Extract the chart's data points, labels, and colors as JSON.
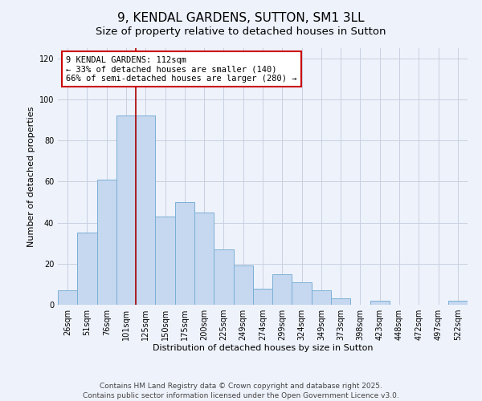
{
  "title": "9, KENDAL GARDENS, SUTTON, SM1 3LL",
  "subtitle": "Size of property relative to detached houses in Sutton",
  "xlabel": "Distribution of detached houses by size in Sutton",
  "ylabel": "Number of detached properties",
  "bar_labels": [
    "26sqm",
    "51sqm",
    "76sqm",
    "101sqm",
    "125sqm",
    "150sqm",
    "175sqm",
    "200sqm",
    "225sqm",
    "249sqm",
    "274sqm",
    "299sqm",
    "324sqm",
    "349sqm",
    "373sqm",
    "398sqm",
    "423sqm",
    "448sqm",
    "472sqm",
    "497sqm",
    "522sqm"
  ],
  "bar_values": [
    7,
    35,
    61,
    92,
    92,
    43,
    50,
    45,
    27,
    19,
    8,
    15,
    11,
    7,
    3,
    0,
    2,
    0,
    0,
    0,
    2
  ],
  "bar_color": "#c5d8f0",
  "bar_edge_color": "#7bafd4",
  "vline_x": 3.5,
  "vline_color": "#aa0000",
  "annotation_line1": "9 KENDAL GARDENS: 112sqm",
  "annotation_line2": "← 33% of detached houses are smaller (140)",
  "annotation_line3": "66% of semi-detached houses are larger (280) →",
  "annotation_box_color": "#ffffff",
  "annotation_box_edge": "#cc0000",
  "ylim": [
    0,
    125
  ],
  "yticks": [
    0,
    20,
    40,
    60,
    80,
    100,
    120
  ],
  "bg_color": "#eef2fb",
  "grid_color": "#c8d0e0",
  "footer1": "Contains HM Land Registry data © Crown copyright and database right 2025.",
  "footer2": "Contains public sector information licensed under the Open Government Licence v3.0.",
  "title_fontsize": 11,
  "subtitle_fontsize": 9.5,
  "axis_label_fontsize": 8,
  "tick_fontsize": 7,
  "annotation_fontsize": 7.5,
  "footer_fontsize": 6.5
}
